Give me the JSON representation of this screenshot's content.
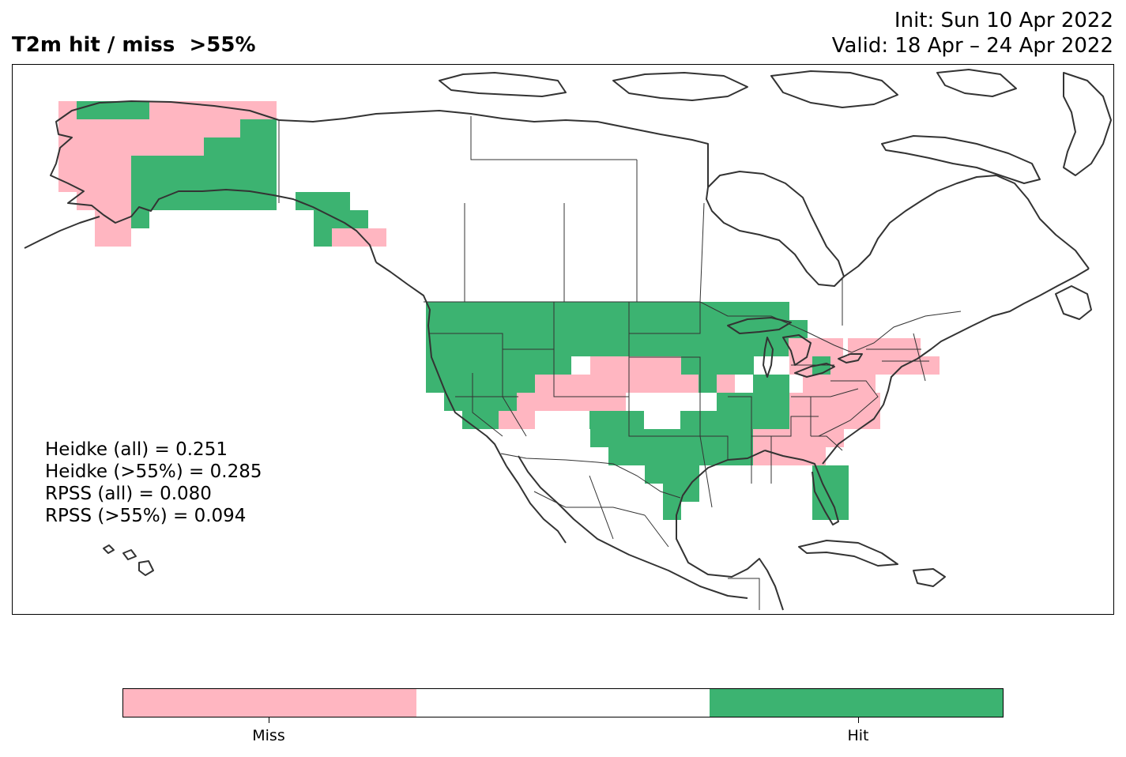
{
  "title": "T2m hit / miss  >55%",
  "init": "Init: Sun 10 Apr 2022",
  "valid": "Valid: 18 Apr – 24 Apr 2022",
  "stats": [
    "Heidke (all) = 0.251",
    "Heidke (>55%) = 0.285",
    "RPSS (all) = 0.080",
    "RPSS (>55%) = 0.094"
  ],
  "colors": {
    "miss": "#FFB6C1",
    "neutral": "#FFFFFF",
    "hit": "#3CB371",
    "coast": "#333333",
    "border": "#333333"
  },
  "legend": {
    "segments": [
      "miss",
      "neutral",
      "hit"
    ],
    "miss_label": "Miss",
    "hit_label": "Hit"
  },
  "map": {
    "region": "North America",
    "category_legend": [
      "Miss",
      "Hit"
    ]
  }
}
